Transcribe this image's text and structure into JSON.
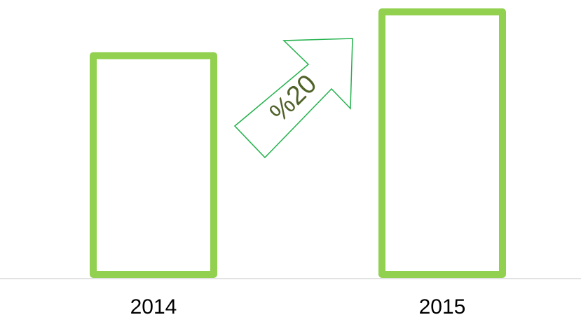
{
  "chart_data": {
    "type": "bar",
    "categories": [
      "2014",
      "2015"
    ],
    "values": [
      100,
      120
    ],
    "color": "#92d050",
    "annotation": "%20"
  }
}
